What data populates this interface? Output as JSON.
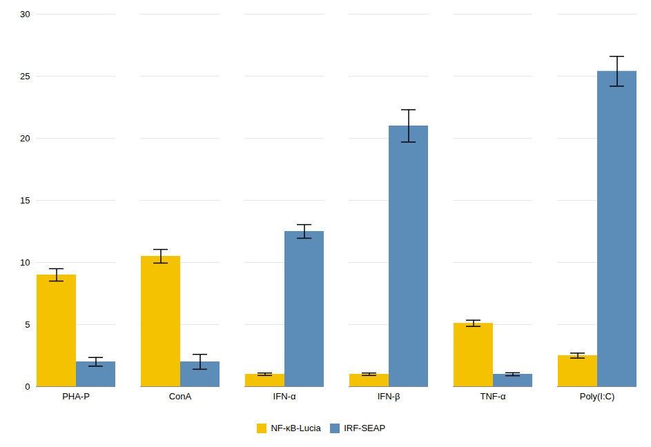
{
  "chart_data": {
    "type": "bar",
    "categories": [
      "PHA-P",
      "ConA",
      "IFN-α",
      "IFN-β",
      "TNF-α",
      "Poly(I:C)"
    ],
    "series": [
      {
        "name": "NF-κB-Lucia",
        "color": "#F5C200",
        "values": [
          9.0,
          10.5,
          1.0,
          1.0,
          5.1,
          2.5
        ],
        "errors": [
          0.5,
          0.55,
          0.1,
          0.1,
          0.25,
          0.2
        ]
      },
      {
        "name": "IRF-SEAP",
        "color": "#5B8DB8",
        "values": [
          2.0,
          2.0,
          12.5,
          21.0,
          1.0,
          25.4
        ],
        "errors": [
          0.35,
          0.6,
          0.55,
          1.3,
          0.12,
          1.2
        ]
      }
    ],
    "ylim": [
      0,
      30
    ],
    "yticks": [
      0,
      5,
      10,
      15,
      20,
      25,
      30
    ],
    "grid": true,
    "legend": "bottom"
  }
}
